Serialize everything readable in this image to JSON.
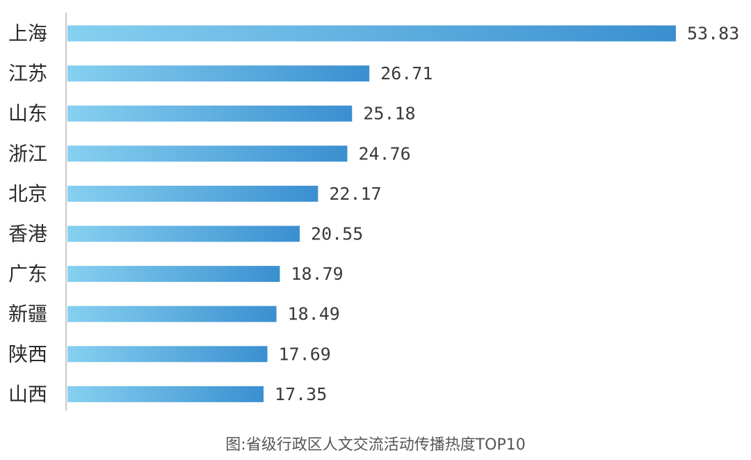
{
  "caption": "图:省级行政区人文交流活动传播热度TOP10",
  "colors": {
    "bar_start": "#86d0f0",
    "bar_end": "#3a8fd0",
    "axis": "#c8c8c8",
    "label": "#2b2b2b",
    "value": "#3a3a3a"
  },
  "chart_data": {
    "type": "bar",
    "orientation": "horizontal",
    "categories": [
      "上海",
      "江苏",
      "山东",
      "浙江",
      "北京",
      "香港",
      "广东",
      "新疆",
      "陕西",
      "山西"
    ],
    "values": [
      53.83,
      26.71,
      25.18,
      24.76,
      22.17,
      20.55,
      18.79,
      18.49,
      17.69,
      17.35
    ],
    "value_labels": [
      "53.83",
      "26.71",
      "25.18",
      "24.76",
      "22.17",
      "20.55",
      "18.79",
      "18.49",
      "17.69",
      "17.35"
    ],
    "xlim": [
      0,
      53.83
    ],
    "grid": false,
    "legend": "none"
  }
}
